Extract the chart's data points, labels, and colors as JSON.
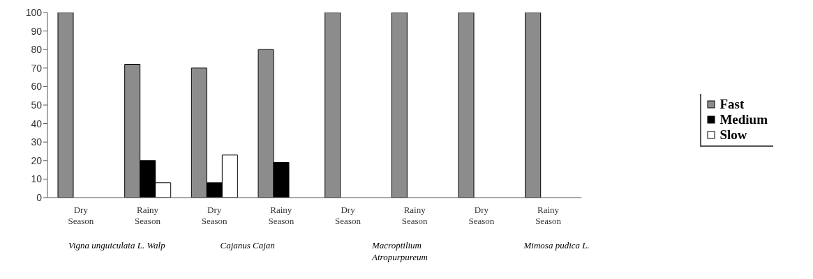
{
  "chart_data": {
    "type": "bar",
    "categories": [
      "Dry Season",
      "Rainy Season",
      "Dry Season",
      "Rainy Season",
      "Dry Season",
      "Rainy Season",
      "Dry Season",
      "Rainy Season"
    ],
    "series": [
      {
        "name": "Fast",
        "color": "#8c8c8c",
        "values": [
          100,
          72,
          70,
          80,
          100,
          100,
          100,
          100
        ]
      },
      {
        "name": "Medium",
        "color": "#000000",
        "values": [
          null,
          20,
          8,
          19,
          null,
          null,
          null,
          null
        ]
      },
      {
        "name": "Slow",
        "color": "#ffffff",
        "values": [
          null,
          8,
          23,
          null,
          null,
          null,
          null,
          null
        ]
      }
    ],
    "ylim": [
      0,
      100
    ],
    "yticks": [
      0,
      10,
      20,
      30,
      40,
      50,
      60,
      70,
      80,
      90,
      100
    ],
    "grid": false,
    "legend": "right",
    "annotations": [
      "Vigna unguiculata L. Walp",
      "Cajanus Cajan",
      "Macroptilium Atropurpureum",
      "Mimosa pudica L."
    ]
  }
}
